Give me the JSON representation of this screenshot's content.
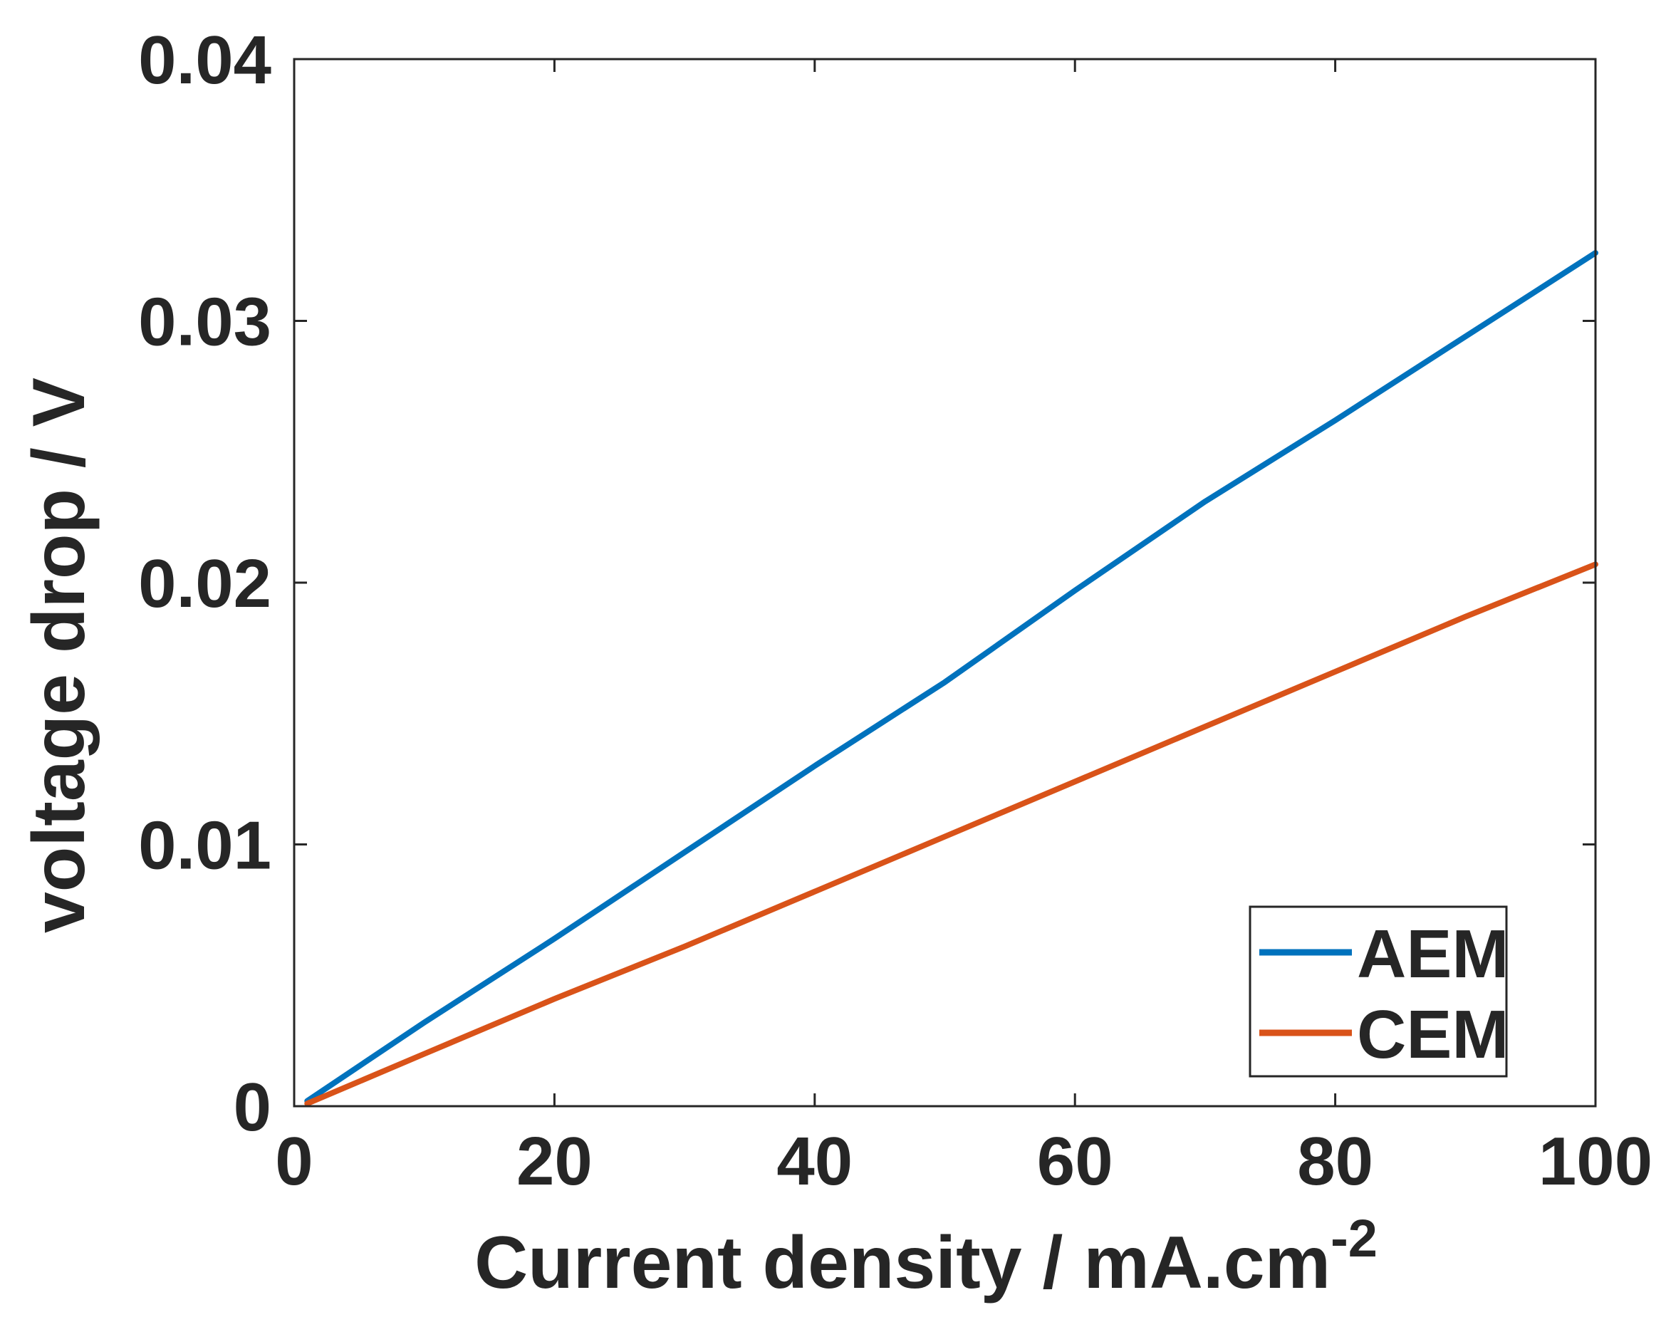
{
  "chart_data": {
    "type": "line",
    "title": "",
    "xlabel": "Current density / mA.cm",
    "xlabel_superscript": "-2",
    "ylabel": "voltage drop / V",
    "xlim": [
      0,
      100
    ],
    "ylim": [
      0,
      0.04
    ],
    "xticks": [
      "0",
      "20",
      "40",
      "60",
      "80",
      "100"
    ],
    "yticks": [
      "0",
      "0.01",
      "0.02",
      "0.03",
      "0.04"
    ],
    "grid": false,
    "legend_position": "bottom-right",
    "series": [
      {
        "name": "AEM",
        "color": "#0072BD",
        "x": [
          1,
          10,
          20,
          30,
          40,
          50,
          60,
          70,
          80,
          90,
          100
        ],
        "y": [
          0.0002,
          0.0032,
          0.0064,
          0.0097,
          0.013,
          0.0162,
          0.0197,
          0.0231,
          0.0262,
          0.0294,
          0.0326
        ]
      },
      {
        "name": "CEM",
        "color": "#D95319",
        "x": [
          1,
          10,
          20,
          30,
          40,
          50,
          60,
          70,
          80,
          90,
          100
        ],
        "y": [
          0.0001,
          0.002,
          0.0041,
          0.0061,
          0.0082,
          0.0103,
          0.0124,
          0.0145,
          0.0166,
          0.0187,
          0.0207
        ]
      }
    ]
  }
}
